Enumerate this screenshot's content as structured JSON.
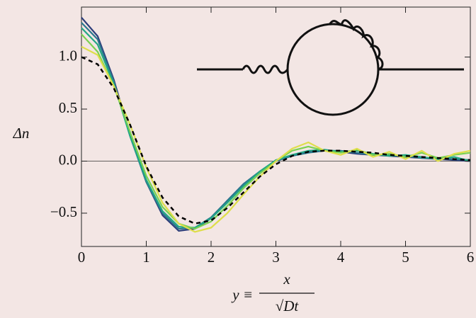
{
  "chart_data": {
    "type": "line",
    "ylabel": "Δn",
    "xlabel_lhs": "y ≡",
    "xlabel_num": "x",
    "xlabel_den": "√Dt",
    "x": [
      0,
      0.25,
      0.5,
      0.75,
      1,
      1.25,
      1.5,
      1.75,
      2,
      2.25,
      2.5,
      2.75,
      3,
      3.25,
      3.5,
      3.75,
      4,
      4.25,
      4.5,
      4.75,
      5,
      5.25,
      5.5,
      5.75,
      6
    ],
    "series": [
      {
        "color": "#2c3e7a",
        "style": "solid",
        "values": [
          1.38,
          1.2,
          0.78,
          0.25,
          -0.2,
          -0.52,
          -0.67,
          -0.65,
          -0.55,
          -0.38,
          -0.22,
          -0.1,
          0.0,
          0.06,
          0.09,
          0.1,
          0.09,
          0.07,
          0.06,
          0.05,
          0.04,
          0.03,
          0.02,
          0.01,
          0.0
        ]
      },
      {
        "color": "#2a788e",
        "style": "solid",
        "values": [
          1.33,
          1.17,
          0.76,
          0.24,
          -0.2,
          -0.5,
          -0.65,
          -0.64,
          -0.54,
          -0.38,
          -0.22,
          -0.1,
          0.0,
          0.05,
          0.08,
          0.1,
          0.1,
          0.08,
          0.06,
          0.06,
          0.05,
          0.03,
          0.03,
          0.02,
          0.01
        ]
      },
      {
        "color": "#22a884",
        "style": "solid",
        "values": [
          1.28,
          1.12,
          0.74,
          0.24,
          -0.18,
          -0.48,
          -0.63,
          -0.64,
          -0.55,
          -0.4,
          -0.24,
          -0.1,
          0.01,
          0.06,
          0.1,
          0.11,
          0.09,
          0.1,
          0.07,
          0.05,
          0.06,
          0.04,
          0.02,
          0.04,
          0.0
        ]
      },
      {
        "color": "#7ad151",
        "style": "solid",
        "values": [
          1.22,
          1.05,
          0.72,
          0.28,
          -0.14,
          -0.44,
          -0.6,
          -0.65,
          -0.58,
          -0.43,
          -0.26,
          -0.12,
          0.0,
          0.1,
          0.14,
          0.1,
          0.08,
          0.11,
          0.06,
          0.07,
          0.04,
          0.08,
          0.03,
          0.06,
          0.08
        ]
      },
      {
        "color": "#dede4a",
        "style": "solid",
        "values": [
          1.1,
          1.02,
          0.72,
          0.35,
          -0.06,
          -0.4,
          -0.6,
          -0.68,
          -0.64,
          -0.5,
          -0.32,
          -0.15,
          0.0,
          0.12,
          0.18,
          0.1,
          0.06,
          0.12,
          0.04,
          0.09,
          0.02,
          0.1,
          0.0,
          0.07,
          0.1
        ]
      },
      {
        "color": "#000000",
        "style": "dashed",
        "values": [
          1.0,
          0.93,
          0.7,
          0.35,
          -0.05,
          -0.35,
          -0.53,
          -0.6,
          -0.57,
          -0.45,
          -0.3,
          -0.15,
          -0.03,
          0.05,
          0.09,
          0.1,
          0.1,
          0.09,
          0.08,
          0.06,
          0.05,
          0.04,
          0.03,
          0.02,
          0.01
        ]
      }
    ],
    "hline": 0,
    "xlim": [
      0,
      6
    ],
    "ylim": [
      -0.82,
      1.48
    ],
    "xticks": [
      0,
      1,
      2,
      3,
      4,
      5,
      6
    ],
    "yticks": [
      {
        "value": -0.5,
        "label": "−0.5"
      },
      {
        "value": 0,
        "label": "0.0"
      },
      0.5,
      {
        "value": 1,
        "label": "1.0"
      }
    ]
  }
}
